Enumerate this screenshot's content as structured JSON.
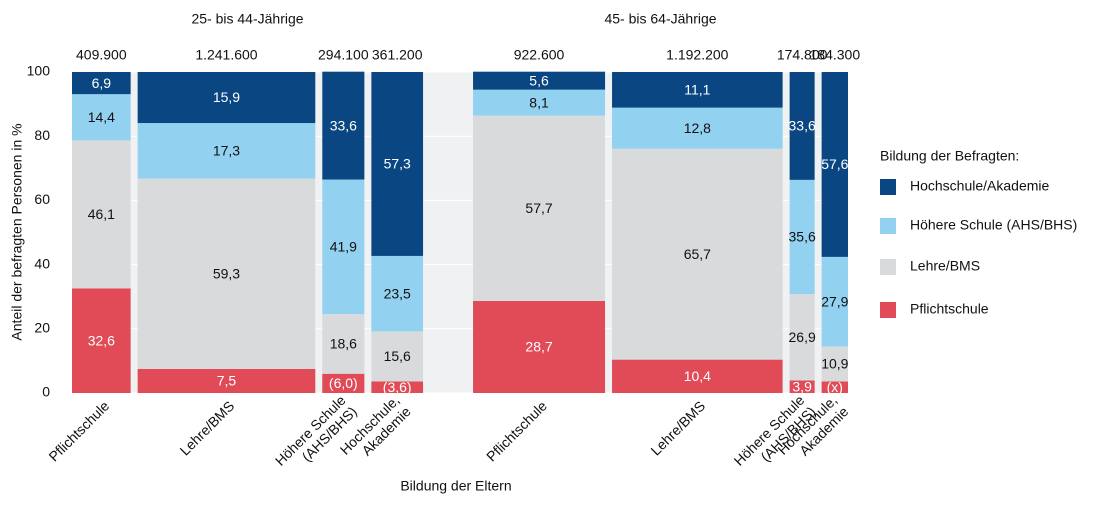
{
  "chart_data": {
    "type": "mekko",
    "y_label": "Anteil der befragten Personen in %",
    "x_label": "Bildung der Eltern",
    "legend_title": "Bildung der Befragten:",
    "ylim": [
      0,
      100
    ],
    "yticks": [
      0,
      20,
      40,
      60,
      80,
      100
    ],
    "grid": true,
    "group_labels": [
      "25- bis 44-Jährige",
      "45- bis 64-Jährige"
    ],
    "categories": [
      [
        [
          "Pflichtschule"
        ],
        [
          "Lehre/BMS"
        ],
        [
          "Höhere Schule",
          "(AHS/BHS)"
        ],
        [
          "Hochschule,",
          "Akademie"
        ]
      ],
      [
        [
          "Pflichtschule"
        ],
        [
          "Lehre/BMS"
        ],
        [
          "Höhere Schule",
          "(AHS/BHS)"
        ],
        [
          "Hochschule,",
          "Akademie"
        ]
      ]
    ],
    "totals": [
      [
        409900,
        1241600,
        294100,
        361200
      ],
      [
        922600,
        1192200,
        174800,
        184300
      ]
    ],
    "total_labels": [
      [
        "409.900",
        "1.241.600",
        "294.100",
        "361.200"
      ],
      [
        "922.600",
        "1.192.200",
        "174.800",
        "184.300"
      ]
    ],
    "series": [
      {
        "name": "Pflichtschule",
        "color": "#e04b57",
        "label_color": "#ffffff",
        "values": [
          [
            32.6,
            7.5,
            6.0,
            3.6
          ],
          [
            28.7,
            10.4,
            3.9,
            3.6
          ]
        ],
        "value_labels": [
          [
            "32,6",
            "7,5",
            "(6,0)",
            "(3,6)"
          ],
          [
            "28,7",
            "10,4",
            "3,9",
            "(x)"
          ]
        ]
      },
      {
        "name": "Lehre/BMS",
        "color": "#d9dadc",
        "label_color": "#111111",
        "values": [
          [
            46.1,
            59.3,
            18.6,
            15.6
          ],
          [
            57.7,
            65.7,
            26.9,
            10.9
          ]
        ],
        "value_labels": [
          [
            "46,1",
            "59,3",
            "18,6",
            "15,6"
          ],
          [
            "57,7",
            "65,7",
            "26,9",
            "10,9"
          ]
        ]
      },
      {
        "name": "Höhere Schule (AHS/BHS)",
        "color": "#93d1f1",
        "label_color": "#111111",
        "values": [
          [
            14.4,
            17.3,
            41.9,
            23.5
          ],
          [
            8.1,
            12.8,
            35.6,
            27.9
          ]
        ],
        "value_labels": [
          [
            "14,4",
            "17,3",
            "41,9",
            "23,5"
          ],
          [
            "8,1",
            "12,8",
            "35,6",
            "27,9"
          ]
        ]
      },
      {
        "name": "Hochschule/Akademie",
        "color": "#0a4682",
        "label_color": "#ffffff",
        "values": [
          [
            6.9,
            15.9,
            33.6,
            57.3
          ],
          [
            5.6,
            11.1,
            33.6,
            57.6
          ]
        ],
        "value_labels": [
          [
            "6,9",
            "15,9",
            "33,6",
            "57,3"
          ],
          [
            "5,6",
            "11,1",
            "33,6",
            "57,6"
          ]
        ]
      }
    ]
  }
}
